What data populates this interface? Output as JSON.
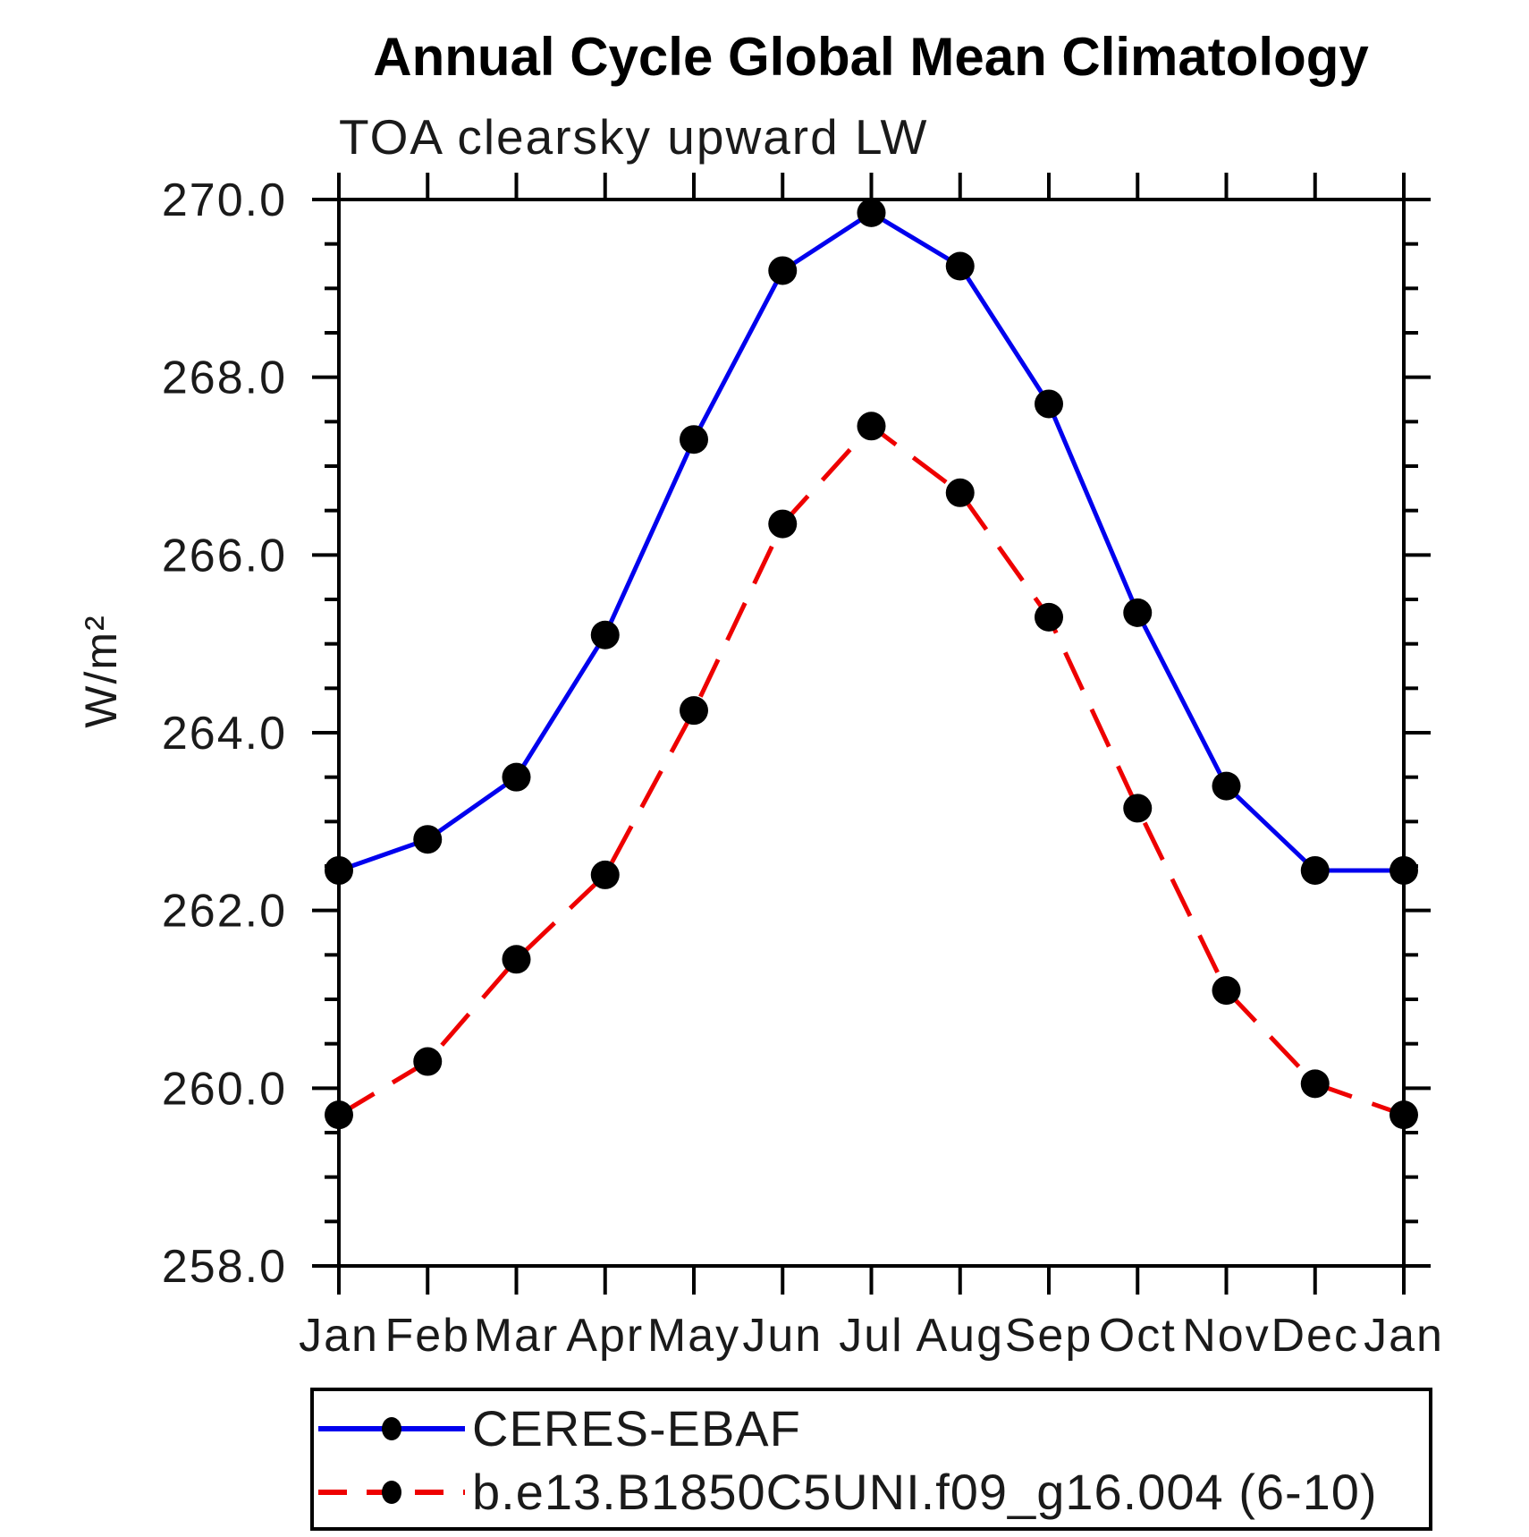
{
  "chart_data": {
    "type": "line",
    "title": "Annual Cycle Global Mean Climatology",
    "subtitle": "TOA clearsky upward LW",
    "ylabel": "W/m²",
    "x_categories": [
      "Jan",
      "Feb",
      "Mar",
      "Apr",
      "May",
      "Jun",
      "Jul",
      "Aug",
      "Sep",
      "Oct",
      "Nov",
      "Dec",
      "Jan"
    ],
    "ylim": [
      258.0,
      270.0
    ],
    "y_major_tick_step": 2.0,
    "y_minor_tick_step": 0.5,
    "y_tick_label_format": "one_decimal",
    "grid": false,
    "axis_color": "#000000",
    "marker_color": "#000000",
    "legend_position": "bottom-left",
    "series": [
      {
        "name": "CERES-EBAF",
        "color": "#0000ee",
        "line_style": "solid",
        "marker": "filled-circle",
        "values": [
          262.45,
          262.8,
          263.5,
          265.1,
          267.3,
          269.2,
          269.85,
          269.25,
          267.7,
          265.35,
          263.4,
          262.45,
          262.45
        ]
      },
      {
        "name": "b.e13.B1850C5UNI.f09_g16.004 (6-10)",
        "color": "#ee0000",
        "line_style": "dashed",
        "marker": "filled-circle",
        "values": [
          259.7,
          260.3,
          261.45,
          262.4,
          264.25,
          266.35,
          267.45,
          266.7,
          265.3,
          263.15,
          261.1,
          260.05,
          259.7
        ]
      }
    ]
  }
}
